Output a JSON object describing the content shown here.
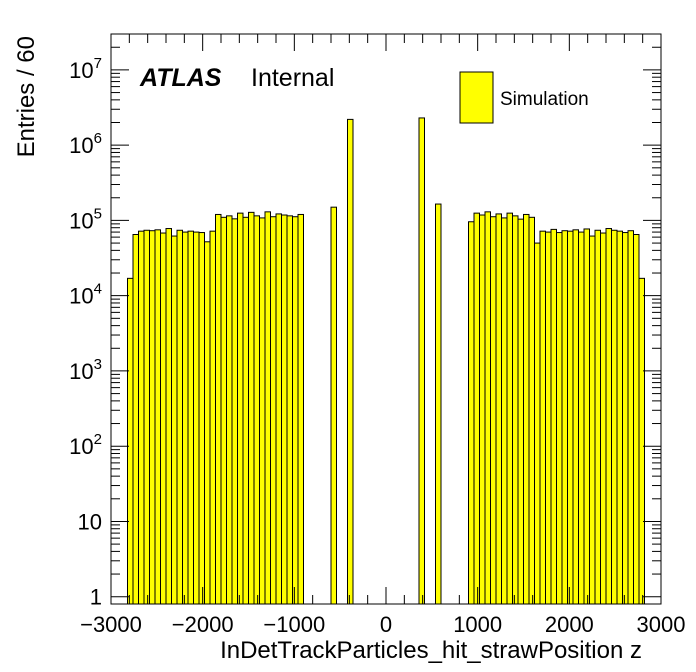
{
  "chart_data": {
    "type": "bar",
    "xlabel": "InDetTrackParticles_hit_strawPosition z",
    "ylabel": "Entries / 60",
    "xlim": [
      -3000,
      3000
    ],
    "ylim": [
      0.8,
      30000000
    ],
    "yscale": "log",
    "bin_width": 60,
    "x_ticks": [
      {
        "value": -3000,
        "label": "−3000"
      },
      {
        "value": -2000,
        "label": "−2000"
      },
      {
        "value": -1000,
        "label": "−1000"
      },
      {
        "value": 0,
        "label": "0"
      },
      {
        "value": 1000,
        "label": "1000"
      },
      {
        "value": 2000,
        "label": "2000"
      },
      {
        "value": 3000,
        "label": "3000"
      }
    ],
    "y_ticks": [
      {
        "value": 1,
        "base": "1",
        "exp": ""
      },
      {
        "value": 10,
        "base": "10",
        "exp": ""
      },
      {
        "value": 100,
        "base": "10",
        "exp": "2"
      },
      {
        "value": 1000,
        "base": "10",
        "exp": "3"
      },
      {
        "value": 10000,
        "base": "10",
        "exp": "4"
      },
      {
        "value": 100000,
        "base": "10",
        "exp": "5"
      },
      {
        "value": 1000000,
        "base": "10",
        "exp": "6"
      },
      {
        "value": 10000000,
        "base": "10",
        "exp": "7"
      }
    ],
    "legend": {
      "position": "top-right",
      "entries": [
        {
          "label": "Simulation",
          "color": "#ffff00"
        }
      ]
    },
    "annotation": {
      "bold_italic": "ATLAS",
      "normal": "Internal"
    },
    "fill_color": "#ffff00",
    "line_color": "#000000",
    "series": [
      {
        "name": "Simulation",
        "x": [
          -2790,
          -2730,
          -2670,
          -2610,
          -2550,
          -2490,
          -2430,
          -2370,
          -2310,
          -2250,
          -2190,
          -2130,
          -2070,
          -2010,
          -1950,
          -1890,
          -1830,
          -1770,
          -1710,
          -1650,
          -1590,
          -1530,
          -1470,
          -1410,
          -1350,
          -1290,
          -1230,
          -1170,
          -1110,
          -1050,
          -990,
          -930,
          -570,
          -390,
          390,
          570,
          930,
          990,
          1050,
          1110,
          1170,
          1230,
          1290,
          1350,
          1410,
          1470,
          1530,
          1590,
          1650,
          1710,
          1770,
          1830,
          1890,
          1950,
          2010,
          2070,
          2130,
          2190,
          2250,
          2310,
          2370,
          2430,
          2490,
          2550,
          2610,
          2670,
          2730,
          2790
        ],
        "values": [
          17000,
          65000,
          72000,
          74000,
          73000,
          75000,
          68000,
          78000,
          62000,
          74000,
          70000,
          72000,
          70000,
          69000,
          52000,
          72000,
          120000,
          110000,
          115000,
          105000,
          125000,
          110000,
          128000,
          115000,
          108000,
          130000,
          112000,
          122000,
          118000,
          115000,
          112000,
          120000,
          150000,
          2200000,
          2300000,
          165000,
          96000,
          125000,
          118000,
          130000,
          112000,
          122000,
          108000,
          125000,
          115000,
          104000,
          120000,
          110000,
          50000,
          72000,
          70000,
          76000,
          69000,
          73000,
          72000,
          75000,
          70000,
          77000,
          62000,
          74000,
          68000,
          78000,
          74000,
          72000,
          69000,
          73000,
          65000,
          17000
        ]
      }
    ]
  }
}
